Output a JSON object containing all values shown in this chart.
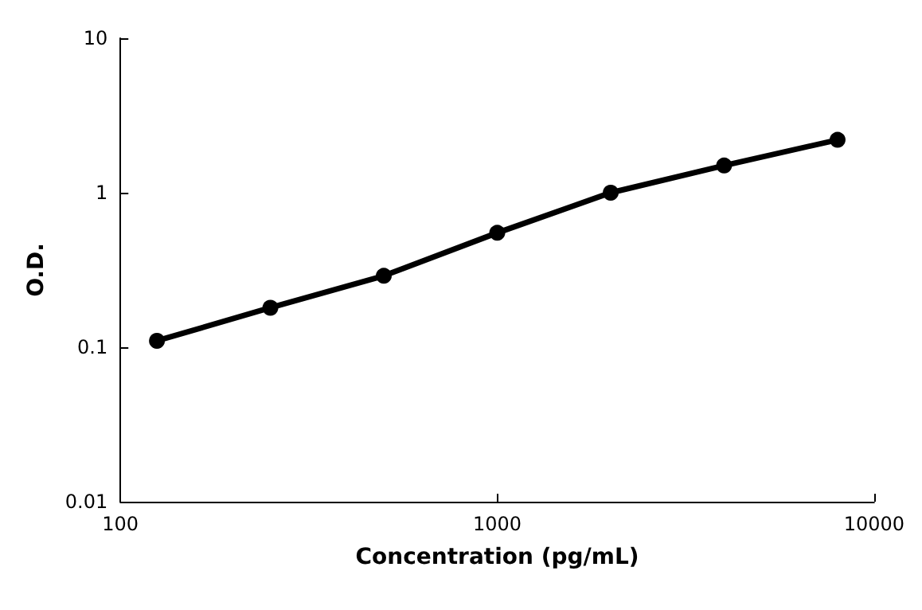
{
  "chart_data": {
    "type": "line",
    "xlabel": "Concentration (pg/mL)",
    "ylabel": "O.D.",
    "x": [
      125,
      250,
      500,
      1000,
      2000,
      4000,
      8000
    ],
    "series": [
      {
        "color": "#000000",
        "values": [
          0.11,
          0.18,
          0.29,
          0.55,
          1.0,
          1.5,
          2.2
        ]
      }
    ],
    "log": "xy",
    "xlim": [
      100,
      10000
    ],
    "ylim": [
      0.01,
      10
    ],
    "xticks": [
      100,
      1000,
      10000
    ],
    "yticks": [
      0.01,
      0.1,
      1,
      10
    ],
    "grid": false,
    "marker": "circle",
    "line_style": "solid"
  }
}
